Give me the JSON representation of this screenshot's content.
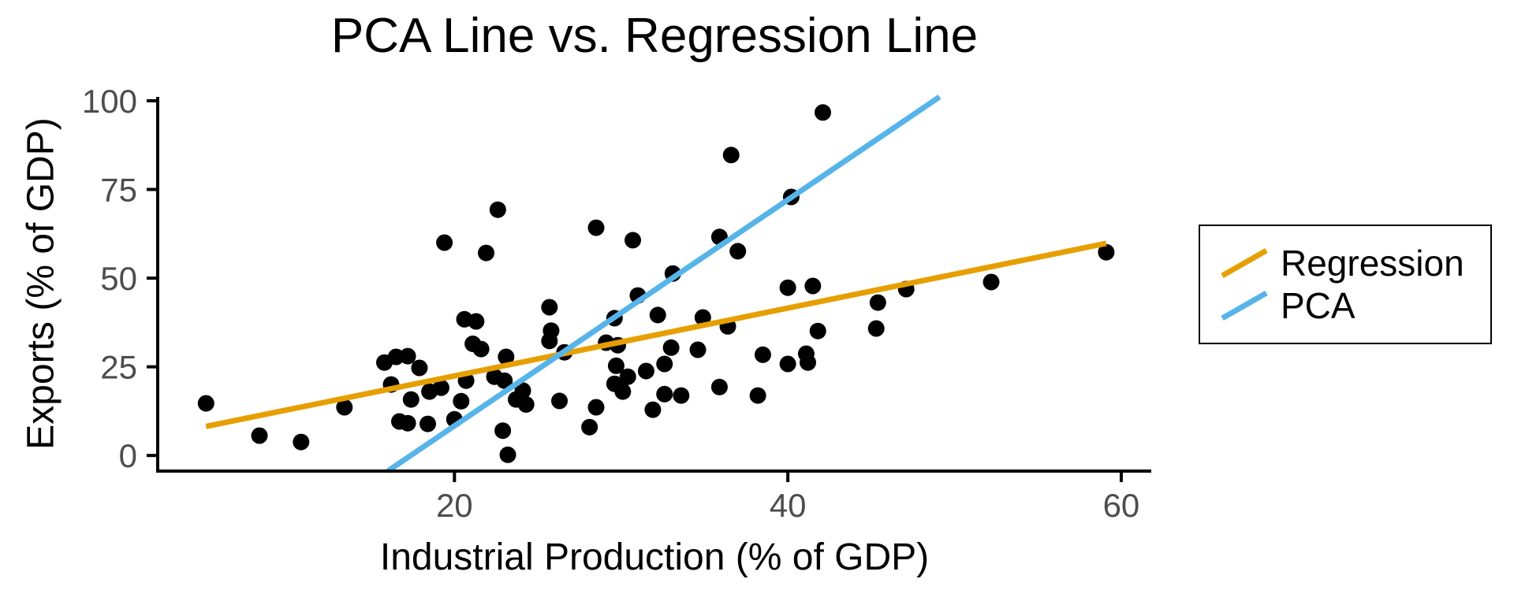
{
  "chart_data": {
    "type": "scatter",
    "title": "PCA Line vs. Regression Line",
    "xlabel": "Industrial Production (% of GDP)",
    "ylabel": "Exports (% of GDP)",
    "x_ticks": [
      20,
      40,
      60
    ],
    "y_ticks": [
      0,
      25,
      50,
      75,
      100
    ],
    "xlim": [
      2.2,
      61.8
    ],
    "ylim": [
      -4.4,
      101.1
    ],
    "grid": false,
    "point_color": "#000000",
    "axis_color": "#000000",
    "axis_text_color": "#4D4D4D",
    "points": [
      [
        5.1,
        14.7
      ],
      [
        8.3,
        5.6
      ],
      [
        10.8,
        3.8
      ],
      [
        13.4,
        13.6
      ],
      [
        15.8,
        26.2
      ],
      [
        16.5,
        27.8
      ],
      [
        17.2,
        28.0
      ],
      [
        17.9,
        24.7
      ],
      [
        16.2,
        20.0
      ],
      [
        17.4,
        15.8
      ],
      [
        16.7,
        9.6
      ],
      [
        17.2,
        9.1
      ],
      [
        18.4,
        8.9
      ],
      [
        18.5,
        18.0
      ],
      [
        19.2,
        19.1
      ],
      [
        20.6,
        38.4
      ],
      [
        21.3,
        37.8
      ],
      [
        21.1,
        31.5
      ],
      [
        21.6,
        30.0
      ],
      [
        20.7,
        21.1
      ],
      [
        20.4,
        15.3
      ],
      [
        20.0,
        10.2
      ],
      [
        19.4,
        60.0
      ],
      [
        21.9,
        57.1
      ],
      [
        22.6,
        69.3
      ],
      [
        28.5,
        64.2
      ],
      [
        30.7,
        60.7
      ],
      [
        35.9,
        61.6
      ],
      [
        37.0,
        57.6
      ],
      [
        33.1,
        51.3
      ],
      [
        31.0,
        45.1
      ],
      [
        25.7,
        41.8
      ],
      [
        42.1,
        96.7
      ],
      [
        36.6,
        84.7
      ],
      [
        40.2,
        72.9
      ],
      [
        29.6,
        38.7
      ],
      [
        32.2,
        39.6
      ],
      [
        34.9,
        38.9
      ],
      [
        36.4,
        36.4
      ],
      [
        29.1,
        31.8
      ],
      [
        29.8,
        31.1
      ],
      [
        33.0,
        30.4
      ],
      [
        34.6,
        29.8
      ],
      [
        29.7,
        25.3
      ],
      [
        32.6,
        25.8
      ],
      [
        31.5,
        23.8
      ],
      [
        30.4,
        22.2
      ],
      [
        29.6,
        20.2
      ],
      [
        30.1,
        18.0
      ],
      [
        32.6,
        17.3
      ],
      [
        33.6,
        16.9
      ],
      [
        35.9,
        19.3
      ],
      [
        31.9,
        12.9
      ],
      [
        28.5,
        13.6
      ],
      [
        28.1,
        8.0
      ],
      [
        23.1,
        27.8
      ],
      [
        25.8,
        35.2
      ],
      [
        25.7,
        32.3
      ],
      [
        26.6,
        29.1
      ],
      [
        22.4,
        22.2
      ],
      [
        23.0,
        21.1
      ],
      [
        24.1,
        18.3
      ],
      [
        23.7,
        15.8
      ],
      [
        24.3,
        14.4
      ],
      [
        26.3,
        15.4
      ],
      [
        22.9,
        7.0
      ],
      [
        23.2,
        0.2
      ],
      [
        38.5,
        28.4
      ],
      [
        38.2,
        16.9
      ],
      [
        40.0,
        25.8
      ],
      [
        41.1,
        28.7
      ],
      [
        41.2,
        26.2
      ],
      [
        41.8,
        35.1
      ],
      [
        40.0,
        47.3
      ],
      [
        41.5,
        47.8
      ],
      [
        47.1,
        46.9
      ],
      [
        45.4,
        43.1
      ],
      [
        45.3,
        35.8
      ],
      [
        52.2,
        48.9
      ],
      [
        59.1,
        57.3
      ]
    ],
    "series": [
      {
        "name": "Regression",
        "type": "line",
        "color": "#E69F00",
        "points": [
          [
            5.1,
            8.2
          ],
          [
            59.1,
            59.8
          ]
        ]
      },
      {
        "name": "PCA",
        "type": "line",
        "color": "#56B4E9",
        "points": [
          [
            16.0,
            -4.4
          ],
          [
            49.1,
            101.1
          ]
        ]
      }
    ],
    "legend": {
      "position": "right",
      "entries": [
        {
          "label": "Regression",
          "color": "#E69F00"
        },
        {
          "label": "PCA",
          "color": "#56B4E9"
        }
      ]
    }
  }
}
